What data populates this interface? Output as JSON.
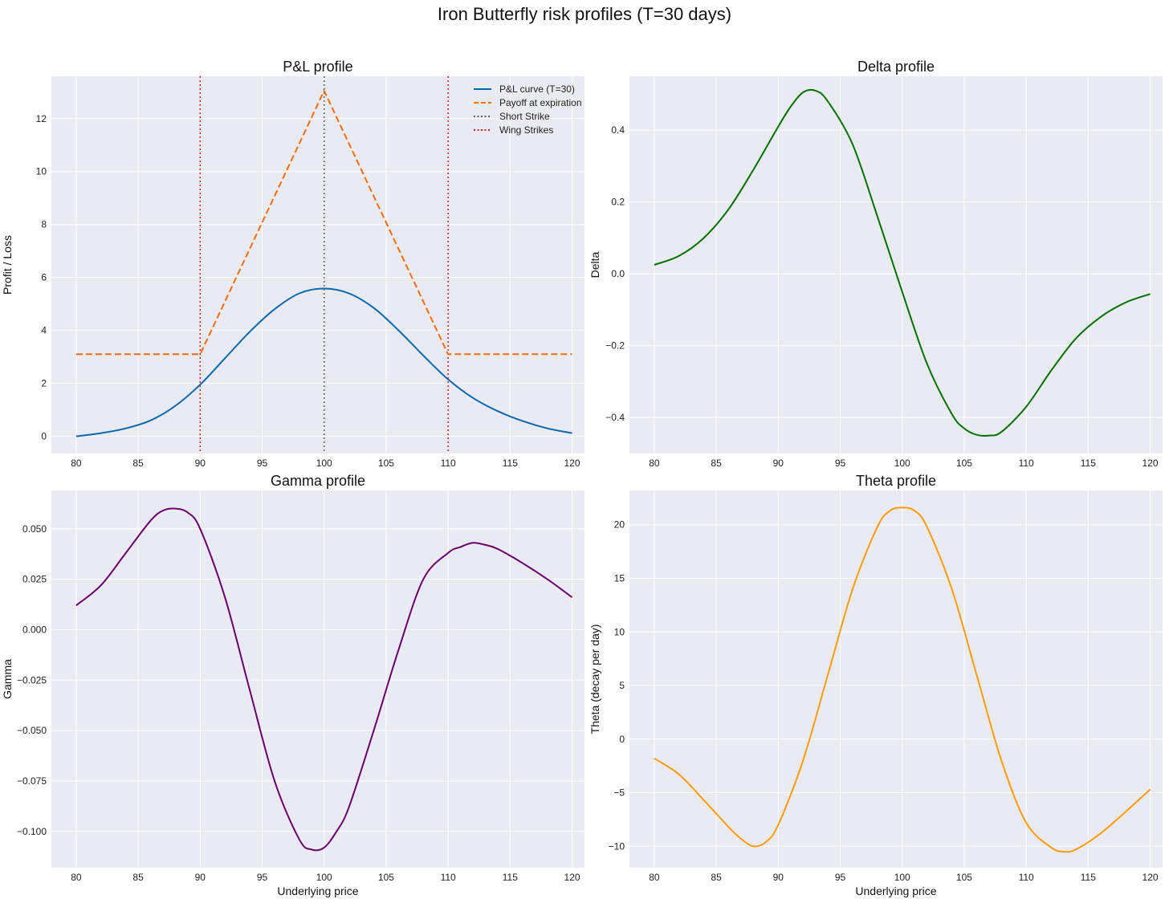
{
  "figure": {
    "title": "Iron Butterfly risk profiles (T=30 days)",
    "background": "#ffffff",
    "axes_facecolor": "#eaeaf2",
    "grid_color": "#ffffff"
  },
  "chart_data": [
    {
      "id": "pnl",
      "type": "line",
      "title": "P&L profile",
      "xlabel": "",
      "ylabel": "Profit / Loss",
      "xlim": [
        78,
        121
      ],
      "ylim": [
        -0.65,
        13.6
      ],
      "xticks": [
        80,
        85,
        90,
        95,
        100,
        105,
        110,
        115,
        120
      ],
      "yticks": [
        0,
        2,
        4,
        6,
        8,
        10,
        12
      ],
      "grid": true,
      "legend": "top-right",
      "series": [
        {
          "name": "P&L curve (T=30)",
          "color": "#0868ac",
          "style": "solid",
          "x": [
            80,
            82,
            84,
            86,
            88,
            90,
            92,
            94,
            96,
            98,
            100,
            102,
            104,
            106,
            108,
            110,
            112,
            114,
            116,
            118,
            120
          ],
          "y": [
            0.0,
            0.12,
            0.3,
            0.6,
            1.15,
            1.95,
            2.95,
            3.95,
            4.8,
            5.4,
            5.58,
            5.4,
            4.85,
            4.0,
            3.05,
            2.15,
            1.45,
            0.95,
            0.58,
            0.3,
            0.12
          ]
        },
        {
          "name": "Payoff at expiration",
          "color": "#f76b0a",
          "style": "dashed",
          "x": [
            80,
            90,
            100,
            110,
            120
          ],
          "y": [
            3.1,
            3.1,
            13.05,
            3.1,
            3.1
          ]
        }
      ],
      "vlines": [
        {
          "name": "Short Strike",
          "x": [
            100
          ],
          "color": "#606060",
          "style": "dotted"
        },
        {
          "name": "Wing Strikes",
          "x": [
            90,
            110
          ],
          "color": "#e41a1c",
          "style": "dotted"
        }
      ]
    },
    {
      "id": "delta",
      "type": "line",
      "title": "Delta profile",
      "xlabel": "",
      "ylabel": "Delta",
      "xlim": [
        78,
        121
      ],
      "ylim": [
        -0.5,
        0.55
      ],
      "xticks": [
        80,
        85,
        90,
        95,
        100,
        105,
        110,
        115,
        120
      ],
      "yticks": [
        -0.4,
        -0.2,
        0.0,
        0.2,
        0.4
      ],
      "ytick_labels": [
        "−0.4",
        "−0.2",
        "0.0",
        "0.2",
        "0.4"
      ],
      "grid": true,
      "series": [
        {
          "color": "#007000",
          "style": "solid",
          "x": [
            80,
            82,
            84,
            86,
            88,
            90,
            91,
            92,
            93,
            94,
            96,
            98,
            100,
            102,
            104,
            105,
            106,
            107,
            108,
            110,
            112,
            114,
            116,
            118,
            120
          ],
          "y": [
            0.025,
            0.05,
            0.1,
            0.18,
            0.29,
            0.41,
            0.465,
            0.505,
            0.51,
            0.48,
            0.36,
            0.16,
            -0.05,
            -0.25,
            -0.39,
            -0.43,
            -0.448,
            -0.45,
            -0.44,
            -0.37,
            -0.27,
            -0.18,
            -0.12,
            -0.08,
            -0.056
          ]
        }
      ]
    },
    {
      "id": "gamma",
      "type": "line",
      "title": "Gamma profile",
      "xlabel": "Underlying price",
      "ylabel": "Gamma",
      "xlim": [
        78,
        121
      ],
      "ylim": [
        -0.118,
        0.069
      ],
      "xticks": [
        80,
        85,
        90,
        95,
        100,
        105,
        110,
        115,
        120
      ],
      "yticks": [
        -0.1,
        -0.075,
        -0.05,
        -0.025,
        0.0,
        0.025,
        0.05
      ],
      "ytick_labels": [
        "−0.100",
        "−0.075",
        "−0.050",
        "−0.025",
        "0.000",
        "0.025",
        "0.050"
      ],
      "grid": true,
      "series": [
        {
          "color": "#6a006a",
          "style": "solid",
          "x": [
            80,
            82,
            84,
            86,
            87,
            88,
            89,
            90,
            92,
            94,
            96,
            98,
            99,
            100,
            101,
            102,
            104,
            106,
            108,
            110,
            111,
            112,
            113,
            114,
            116,
            118,
            120
          ],
          "y": [
            0.012,
            0.022,
            0.038,
            0.054,
            0.059,
            0.06,
            0.058,
            0.05,
            0.016,
            -0.03,
            -0.075,
            -0.104,
            -0.109,
            -0.108,
            -0.1,
            -0.088,
            -0.05,
            -0.01,
            0.025,
            0.038,
            0.041,
            0.043,
            0.042,
            0.04,
            0.033,
            0.025,
            0.016
          ]
        }
      ]
    },
    {
      "id": "theta",
      "type": "line",
      "title": "Theta profile",
      "xlabel": "Underlying price",
      "ylabel": "Theta (decay per day)",
      "xlim": [
        78,
        121
      ],
      "ylim": [
        -12.0,
        23.2
      ],
      "xticks": [
        80,
        85,
        90,
        95,
        100,
        105,
        110,
        115,
        120
      ],
      "yticks": [
        -10,
        -5,
        0,
        5,
        10,
        15,
        20
      ],
      "ytick_labels": [
        "−10",
        "−5",
        "0",
        "5",
        "10",
        "15",
        "20"
      ],
      "grid": true,
      "series": [
        {
          "color": "#ff9c0a",
          "style": "solid",
          "x": [
            80,
            82,
            84,
            86,
            87,
            88,
            89,
            90,
            92,
            94,
            96,
            98,
            99,
            100,
            101,
            102,
            104,
            106,
            108,
            110,
            112,
            113,
            114,
            116,
            118,
            120
          ],
          "y": [
            -1.8,
            -3.3,
            -5.7,
            -8.2,
            -9.3,
            -10.0,
            -9.6,
            -8.0,
            -2.0,
            6.0,
            14.0,
            19.8,
            21.3,
            21.6,
            21.3,
            19.8,
            14.0,
            6.0,
            -2.0,
            -7.8,
            -10.1,
            -10.5,
            -10.3,
            -8.8,
            -6.8,
            -4.7
          ]
        }
      ]
    }
  ]
}
